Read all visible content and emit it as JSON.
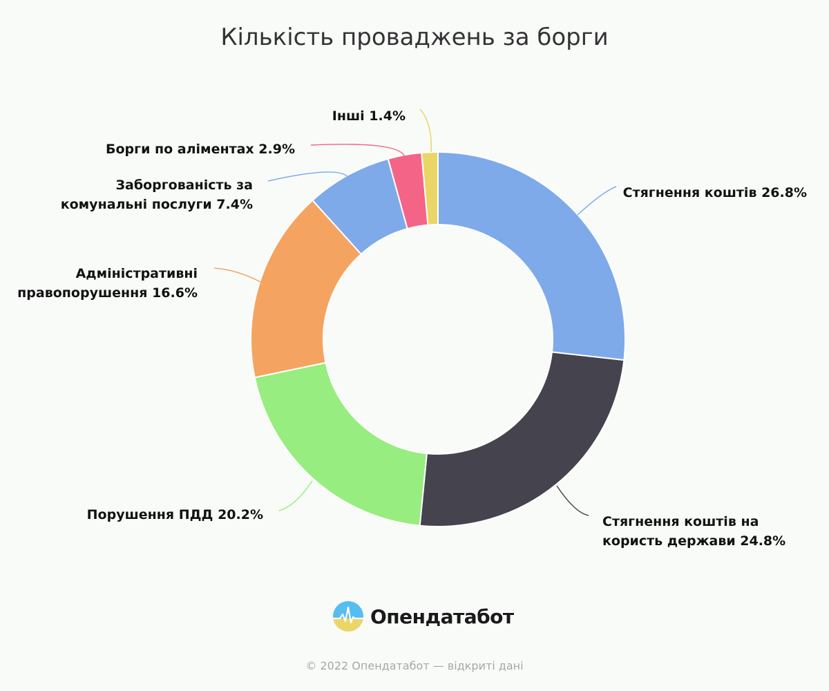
{
  "chart_data": {
    "type": "pie",
    "title": "Кількість проваджень за борги",
    "donut": true,
    "slices": [
      {
        "label": "Стягнення коштів",
        "value": 26.8,
        "color": "#7eaae9"
      },
      {
        "label": "Стягнення коштів на користь держави",
        "value": 24.8,
        "color": "#45434d"
      },
      {
        "label": "Порушення ПДД",
        "value": 20.2,
        "color": "#97ed7f"
      },
      {
        "label": "Адміністративні правопорушення",
        "value": 16.6,
        "color": "#f4a460"
      },
      {
        "label": "Заборгованість за комунальні послуги",
        "value": 7.4,
        "color": "#7eaae9"
      },
      {
        "label": "Борги по аліментах",
        "value": 2.9,
        "color": "#f36486"
      },
      {
        "label": "Інші",
        "value": 1.4,
        "color": "#ead666"
      }
    ],
    "data_labels": [
      "Стягнення коштів 26.8%",
      [
        "Стягнення коштів на",
        "користь держави 24.8%"
      ],
      "Порушення ПДД 20.2%",
      [
        "Адміністративні",
        "правопорушення 16.6%"
      ],
      [
        "Заборгованість за",
        "комунальні послуги 7.4%"
      ],
      "Борги по аліментах 2.9%",
      "Інші 1.4%"
    ]
  },
  "branding": {
    "logo_text": "Опендатабот",
    "logo_icon": "opendatabot-logo-icon",
    "footer": "© 2022 Опендатабот — відкриті дані"
  }
}
